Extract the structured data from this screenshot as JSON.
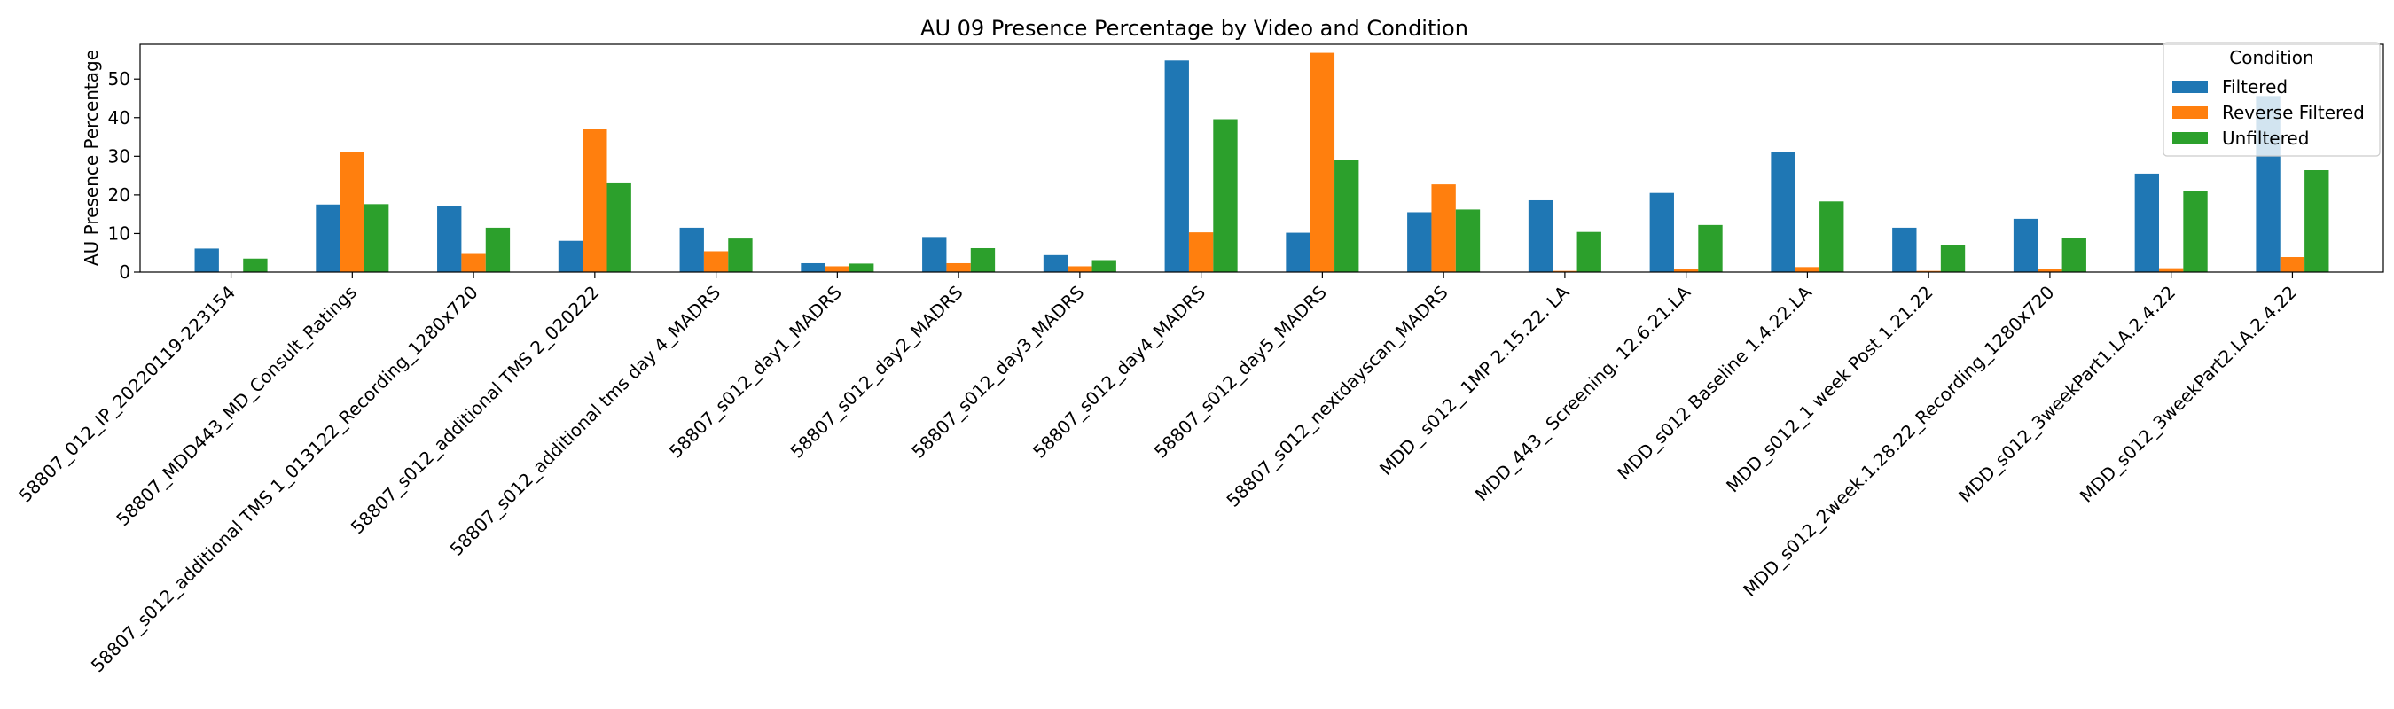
{
  "chart_data": {
    "type": "bar",
    "title": "AU 09 Presence Percentage by Video and Condition",
    "xlabel": "",
    "ylabel": "AU Presence Percentage",
    "ylim": [
      0,
      59
    ],
    "yticks": [
      0,
      10,
      20,
      30,
      40,
      50
    ],
    "grid": false,
    "legend": {
      "title": "Condition",
      "placement": "top-right"
    },
    "categories": [
      "58807_012_IP_20220119-223154",
      "58807_MDD443_MD_Consult_Ratings",
      "58807_s012_additional TMS 1_013122_Recording_1280x720",
      "58807_s012_additional TMS 2_020222",
      "58807_s012_additional tms day 4_MADRS",
      "58807_s012_day1_MADRS",
      "58807_s012_day2_MADRS",
      "58807_s012_day3_MADRS",
      "58807_s012_day4_MADRS",
      "58807_s012_day5_MADRS",
      "58807_s012_nextdayscan_MADRS",
      "MDD_ s012_ 1MP  2.15.22. LA",
      "MDD_443_ Screening. 12.6.21.LA",
      "MDD_s012 Baseline 1.4.22.LA",
      "MDD_s012_1 week Post 1.21.22",
      "MDD_s012_2week.1.28.22_Recording_1280x720",
      "MDD_s012_3weekPart1.LA.2.4.22",
      "MDD_s012_3weekPart2.LA.2.4.22"
    ],
    "series": [
      {
        "name": "Filtered",
        "color": "#1f77b4",
        "values": [
          6.1,
          17.5,
          17.2,
          8.1,
          11.5,
          2.3,
          9.1,
          4.4,
          54.8,
          10.2,
          15.5,
          18.6,
          20.5,
          31.2,
          11.5,
          13.8,
          25.5,
          45.6
        ]
      },
      {
        "name": "Reverse Filtered",
        "color": "#ff7f0e",
        "values": [
          0,
          31.0,
          4.7,
          37.1,
          5.4,
          1.5,
          2.3,
          1.5,
          10.3,
          56.8,
          22.7,
          0.3,
          0.8,
          1.3,
          0.3,
          0.8,
          1.0,
          3.9
        ]
      },
      {
        "name": "Unfiltered",
        "color": "#2ca02c",
        "values": [
          3.5,
          17.6,
          11.5,
          23.2,
          8.7,
          2.2,
          6.2,
          3.1,
          39.6,
          29.1,
          16.2,
          10.4,
          12.2,
          18.3,
          7.0,
          8.9,
          21.0,
          26.4
        ]
      }
    ]
  }
}
